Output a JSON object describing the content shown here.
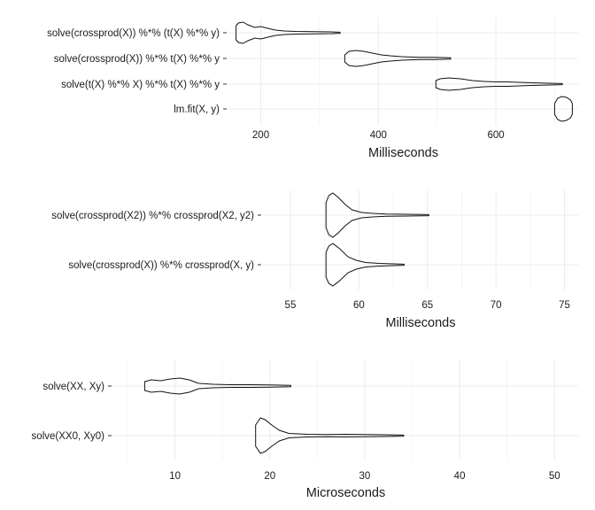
{
  "chart_data": [
    {
      "type": "violin",
      "xlabel": "Milliseconds",
      "xlim": [
        145,
        740
      ],
      "x_ticks": [
        200,
        400,
        600
      ],
      "x_tick_labels": [
        "200",
        "400",
        "600"
      ],
      "grid": true,
      "categories": [
        "solve(crossprod(X)) %*% (t(X) %*% y)",
        "solve(crossprod(X)) %*% t(X) %*% y",
        "solve(t(X) %*% X) %*% t(X) %*% y",
        "lm.fit(X, y)"
      ],
      "series": [
        {
          "category": "solve(crossprod(X)) %*% (t(X) %*% y)",
          "min": 158,
          "max": 335,
          "profile": [
            [
              158,
              8
            ],
            [
              162,
              11
            ],
            [
              170,
              12
            ],
            [
              178,
              9
            ],
            [
              190,
              6
            ],
            [
              200,
              7
            ],
            [
              212,
              5
            ],
            [
              225,
              3
            ],
            [
              240,
              2
            ],
            [
              260,
              1.5
            ],
            [
              290,
              1.2
            ],
            [
              320,
              1.0
            ],
            [
              335,
              0.6
            ]
          ]
        },
        {
          "category": "solve(crossprod(X)) %*% t(X) %*% y",
          "min": 343,
          "max": 523,
          "profile": [
            [
              343,
              4
            ],
            [
              350,
              8
            ],
            [
              362,
              9
            ],
            [
              375,
              8
            ],
            [
              390,
              6
            ],
            [
              405,
              4
            ],
            [
              420,
              3
            ],
            [
              440,
              2
            ],
            [
              455,
              1.6
            ],
            [
              470,
              1.2
            ],
            [
              495,
              1.2
            ],
            [
              523,
              0.8
            ]
          ]
        },
        {
          "category": "solve(t(X) %*% X) %*% t(X) %*% y",
          "min": 498,
          "max": 713,
          "profile": [
            [
              498,
              4
            ],
            [
              505,
              6
            ],
            [
              520,
              7
            ],
            [
              540,
              6
            ],
            [
              560,
              4
            ],
            [
              580,
              3
            ],
            [
              600,
              2.5
            ],
            [
              620,
              2.5
            ],
            [
              640,
              2
            ],
            [
              660,
              1.5
            ],
            [
              690,
              1
            ],
            [
              713,
              0.6
            ]
          ]
        },
        {
          "category": "lm.fit(X, y)",
          "min": 700,
          "max": 730,
          "profile": [
            [
              700,
              6
            ],
            [
              705,
              12
            ],
            [
              712,
              14
            ],
            [
              720,
              13
            ],
            [
              727,
              10
            ],
            [
              730,
              6
            ]
          ]
        }
      ]
    },
    {
      "type": "violin",
      "xlabel": "Milliseconds",
      "xlim": [
        53,
        76
      ],
      "x_ticks": [
        55,
        60,
        65,
        70,
        75
      ],
      "x_tick_labels": [
        "55",
        "60",
        "65",
        "70",
        "75"
      ],
      "grid": true,
      "categories": [
        "solve(crossprod(X2)) %*% crossprod(X2, y2)",
        "solve(crossprod(X)) %*% crossprod(X, y)"
      ],
      "series": [
        {
          "category": "solve(crossprod(X2)) %*% crossprod(X2, y2)",
          "min": 57.6,
          "max": 65.1,
          "profile": [
            [
              57.6,
              14
            ],
            [
              57.8,
              22
            ],
            [
              58.1,
              25
            ],
            [
              58.5,
              20
            ],
            [
              59.0,
              12
            ],
            [
              59.5,
              6
            ],
            [
              60.2,
              3
            ],
            [
              61.0,
              2
            ],
            [
              62.0,
              1.2
            ],
            [
              63.5,
              1
            ],
            [
              65.1,
              0.6
            ]
          ]
        },
        {
          "category": "solve(crossprod(X)) %*% crossprod(X, y)",
          "min": 57.6,
          "max": 63.3,
          "profile": [
            [
              57.6,
              14
            ],
            [
              57.8,
              21
            ],
            [
              58.1,
              24
            ],
            [
              58.6,
              18
            ],
            [
              59.2,
              9
            ],
            [
              59.8,
              5
            ],
            [
              60.5,
              2.5
            ],
            [
              61.5,
              1.5
            ],
            [
              62.5,
              1
            ],
            [
              63.3,
              0.6
            ]
          ]
        }
      ]
    },
    {
      "type": "violin",
      "xlabel": "Microseconds",
      "xlim": [
        3.5,
        52.5
      ],
      "x_ticks": [
        10,
        20,
        30,
        40,
        50
      ],
      "x_tick_labels": [
        "10",
        "20",
        "30",
        "40",
        "50"
      ],
      "grid": true,
      "categories": [
        "solve(XX, Xy)",
        "solve(XX0, Xy0)"
      ],
      "series": [
        {
          "category": "solve(XX, Xy)",
          "min": 6.8,
          "max": 22.2,
          "profile": [
            [
              6.8,
              5
            ],
            [
              7.5,
              7
            ],
            [
              8.5,
              6
            ],
            [
              9.5,
              8
            ],
            [
              10.5,
              9
            ],
            [
              11.5,
              7
            ],
            [
              12.5,
              3
            ],
            [
              14,
              2
            ],
            [
              16,
              1.5
            ],
            [
              18,
              1.5
            ],
            [
              20,
              1.2
            ],
            [
              22.2,
              0.8
            ]
          ]
        },
        {
          "category": "solve(XX0, Xy0)",
          "min": 18.5,
          "max": 34.1,
          "profile": [
            [
              18.5,
              12
            ],
            [
              19.0,
              20
            ],
            [
              19.5,
              18
            ],
            [
              20.2,
              12
            ],
            [
              21,
              6
            ],
            [
              22,
              2.5
            ],
            [
              24,
              1.5
            ],
            [
              26,
              1.2
            ],
            [
              28,
              1.5
            ],
            [
              30,
              1.2
            ],
            [
              32,
              1
            ],
            [
              34.1,
              0.6
            ]
          ]
        }
      ]
    }
  ]
}
